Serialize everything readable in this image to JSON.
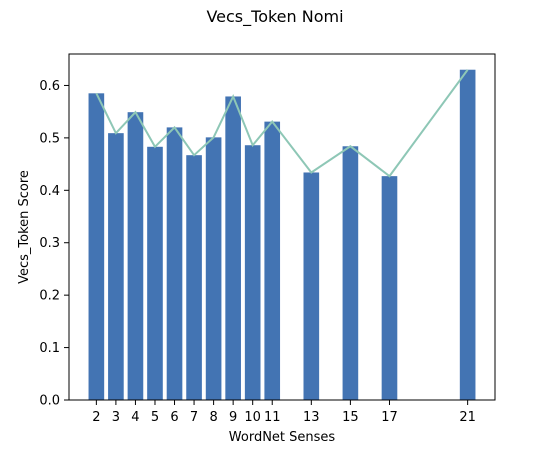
{
  "chart_data": {
    "type": "bar",
    "title": "Vecs_Token Nomi",
    "xlabel": "WordNet Senses",
    "ylabel": "Vecs_Token Score",
    "x": [
      2,
      3,
      4,
      5,
      6,
      7,
      8,
      9,
      10,
      11,
      13,
      15,
      17,
      21
    ],
    "values": [
      0.585,
      0.509,
      0.549,
      0.483,
      0.52,
      0.467,
      0.501,
      0.579,
      0.486,
      0.531,
      0.434,
      0.484,
      0.427,
      0.63
    ],
    "line_values": [
      0.585,
      0.509,
      0.549,
      0.483,
      0.52,
      0.467,
      0.501,
      0.579,
      0.486,
      0.531,
      0.434,
      0.484,
      0.427,
      0.63
    ],
    "xtick_labels": [
      "2",
      "3",
      "4",
      "5",
      "6",
      "7",
      "8",
      "9",
      "10",
      "11",
      "13",
      "15",
      "17",
      "21"
    ],
    "yticks": [
      0.0,
      0.1,
      0.2,
      0.3,
      0.4,
      0.5,
      0.6
    ],
    "ytick_labels": [
      "0.0",
      "0.1",
      "0.2",
      "0.3",
      "0.4",
      "0.5",
      "0.6"
    ],
    "xlim": [
      0.6,
      22.4
    ],
    "ylim": [
      0,
      0.66
    ],
    "grid": false,
    "bar_color": "#4374b3",
    "line_color": "#8ec7b6"
  }
}
